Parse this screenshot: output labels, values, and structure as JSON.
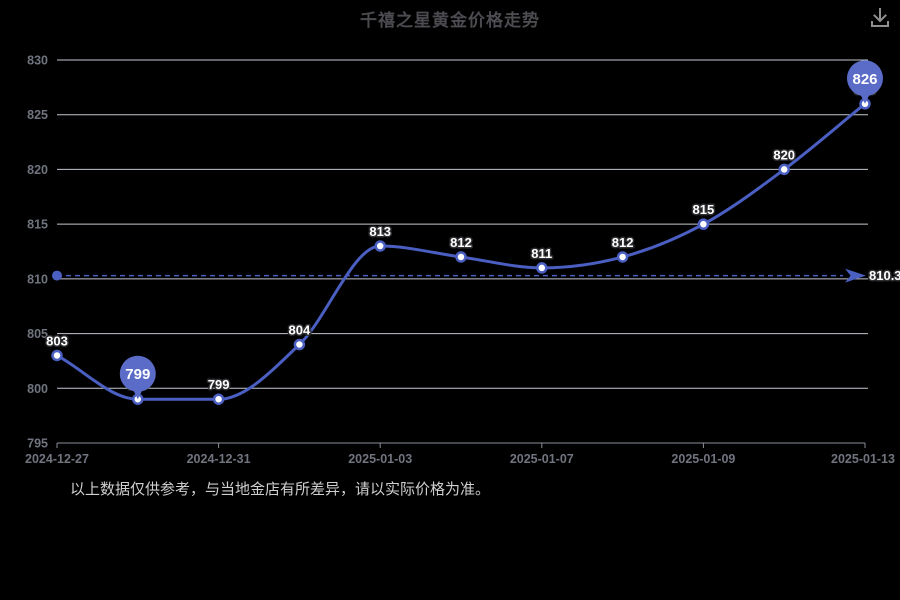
{
  "header": {
    "title": "千禧之星黄金价格走势",
    "download_icon": "download"
  },
  "footer": {
    "disclaimer": "以上数据仅供参考，与当地金店有所差异，请以实际价格为准。"
  },
  "chart_data": {
    "type": "line",
    "title": "千禧之星黄金价格走势",
    "smooth": true,
    "grid": true,
    "x_tick_labels": [
      "2024-12-27",
      "2024-12-31",
      "2025-01-03",
      "2025-01-07",
      "2025-01-09",
      "2025-01-13"
    ],
    "x_tick_indices": [
      0,
      2,
      4,
      6,
      8,
      10
    ],
    "values": [
      803,
      799,
      799,
      804,
      813,
      812,
      811,
      812,
      815,
      820,
      826
    ],
    "point_labels": [
      "803",
      "799",
      "799",
      "804",
      "813",
      "812",
      "811",
      "812",
      "815",
      "820",
      "826"
    ],
    "pin_points": [
      {
        "index": 1,
        "label": "799"
      },
      {
        "index": 10,
        "label": "826"
      }
    ],
    "y_ticks": [
      830,
      825,
      820,
      815,
      810,
      805,
      800,
      795
    ],
    "ylim": [
      795,
      830
    ],
    "markline": {
      "value": 810.3,
      "label": "810.3"
    },
    "legend": null,
    "colors": {
      "line": "#4a5fc1",
      "pin": "#5a6cc8",
      "point_fill": "#ffffff",
      "grid": "#dadee7",
      "axis": "#8a8f9a",
      "axis_text": "#70747e",
      "label_text": "#ffffff",
      "label_outline": "#2e2e32",
      "title": "#4b4b50",
      "footer": "#cfcfcf",
      "background": "#000000",
      "icon": "#8f8f8f"
    }
  }
}
